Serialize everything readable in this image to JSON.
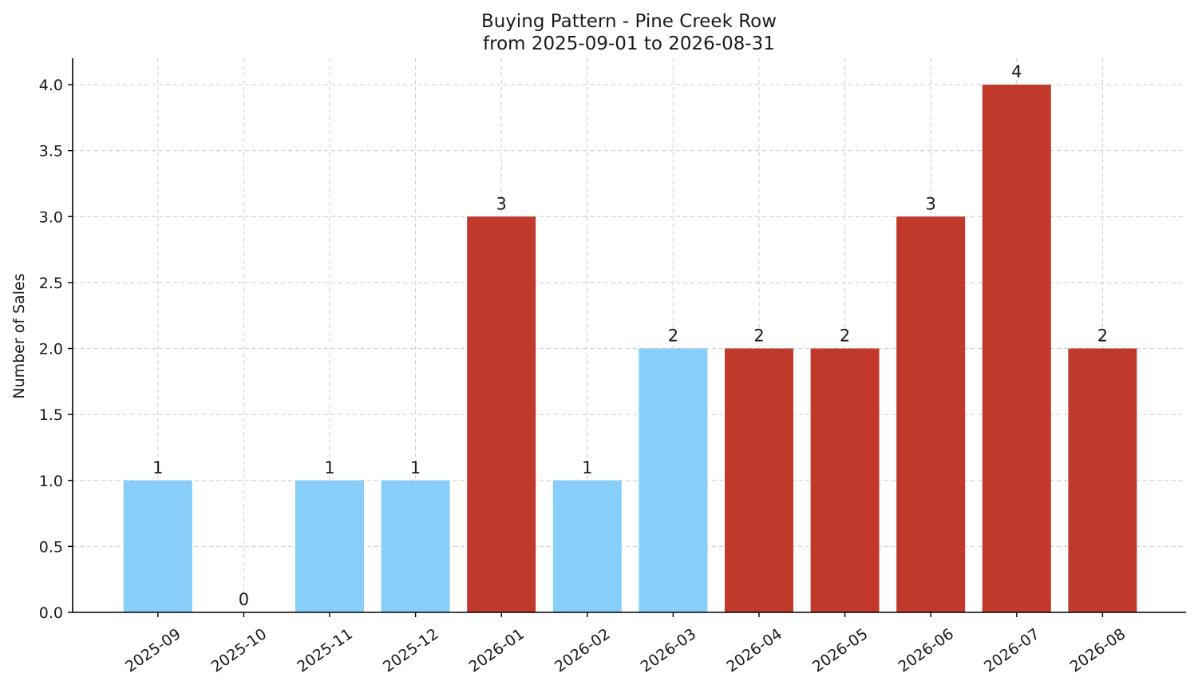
{
  "chart_data": {
    "type": "bar",
    "title": "Buying Pattern - Pine Creek Row",
    "subtitle": "from 2025-09-01 to 2026-08-31",
    "xlabel": "",
    "ylabel": "Number of Sales",
    "categories": [
      "2025-09",
      "2025-10",
      "2025-11",
      "2025-12",
      "2026-01",
      "2026-02",
      "2026-03",
      "2026-04",
      "2026-05",
      "2026-06",
      "2026-07",
      "2026-08"
    ],
    "values": [
      1,
      0,
      1,
      1,
      3,
      1,
      2,
      2,
      2,
      3,
      4,
      2
    ],
    "data_labels": [
      "1",
      "0",
      "1",
      "1",
      "3",
      "1",
      "2",
      "2",
      "2",
      "3",
      "4",
      "2"
    ],
    "bar_colors": [
      "#87CEFA",
      "#87CEFA",
      "#87CEFA",
      "#87CEFA",
      "#C0392B",
      "#87CEFA",
      "#87CEFA",
      "#C0392B",
      "#C0392B",
      "#C0392B",
      "#C0392B",
      "#C0392B"
    ],
    "ylim": [
      0,
      4.2
    ],
    "yticks": [
      0,
      0.5,
      1,
      1.5,
      2,
      2.5,
      3,
      3.5,
      4
    ],
    "ytick_labels": [
      "0.0",
      "0.5",
      "1.0",
      "1.5",
      "2.0",
      "2.5",
      "3.0",
      "3.5",
      "4.0"
    ],
    "grid": true,
    "legend": "none"
  }
}
